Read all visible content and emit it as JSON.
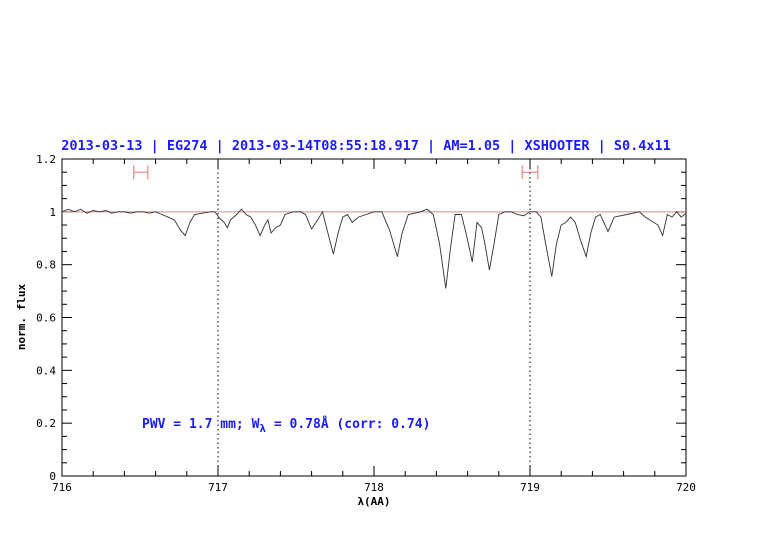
{
  "chart_data": {
    "type": "line",
    "title": "2013-03-13 | EG274 | 2013-03-14T08:55:18.917 | AM=1.05 | XSHOOTER | S0.4x11",
    "xlabel": "λ(AA)",
    "ylabel": "norm. flux",
    "xlim": [
      716,
      720
    ],
    "ylim": [
      0,
      1.2
    ],
    "xticks": [
      716,
      717,
      718,
      719,
      720
    ],
    "yticks": [
      0,
      0.2,
      0.4,
      0.6,
      0.8,
      1,
      1.2
    ],
    "xtick_labels": [
      "716",
      "717",
      "718",
      "719",
      "720"
    ],
    "ytick_labels": [
      "0",
      "0.2",
      "0.4",
      "0.6",
      "0.8",
      "1",
      "1.2"
    ],
    "grid": false,
    "annotation": {
      "prefix": "PWV = 1.7 mm; W",
      "subscript": "λ",
      "suffix": " = 0.78Å (corr: 0.74)"
    },
    "reference_line": {
      "y": 1.0,
      "color": "#d88a8a"
    },
    "vertical_markers": [
      717,
      719
    ],
    "error_bars": [
      {
        "x_min": 716.46,
        "x_max": 716.55,
        "y": 1.15
      },
      {
        "x_min": 718.95,
        "x_max": 719.05,
        "y": 1.15
      }
    ],
    "colors": {
      "title": "#1a1aff",
      "spectrum": "#333333",
      "error_bar": "#f07070",
      "annotation": "#1a1aff"
    },
    "series": [
      {
        "x": [
          716.0,
          716.04,
          716.08,
          716.12,
          716.16,
          716.2,
          716.24,
          716.28,
          716.32,
          716.36,
          716.4,
          716.44,
          716.48,
          716.52,
          716.56,
          716.6,
          716.64,
          716.68,
          716.72,
          716.76,
          716.79,
          716.82,
          716.85,
          716.9,
          716.95,
          716.98,
          717.01,
          717.04,
          717.06,
          717.08,
          717.12,
          717.15,
          717.18,
          717.21,
          717.24,
          717.27,
          717.3,
          717.32,
          717.34,
          717.37,
          717.4,
          717.43,
          717.48,
          717.53,
          717.56,
          717.6,
          717.64,
          717.67,
          717.7,
          717.74,
          717.77,
          717.8,
          717.83,
          717.86,
          717.9,
          717.95,
          718.0,
          718.05,
          718.1,
          718.15,
          718.18,
          718.22,
          718.26,
          718.3,
          718.34,
          718.38,
          718.42,
          718.46,
          718.49,
          718.52,
          718.56,
          718.59,
          718.63,
          718.66,
          718.69,
          718.71,
          718.74,
          718.77,
          718.8,
          718.84,
          718.88,
          718.92,
          718.96,
          719.0,
          719.04,
          719.07,
          719.1,
          719.14,
          719.17,
          719.2,
          719.23,
          719.26,
          719.29,
          719.32,
          719.36,
          719.39,
          719.42,
          719.45,
          719.5,
          719.54,
          719.58,
          719.62,
          719.66,
          719.7,
          719.74,
          719.78,
          719.82,
          719.85,
          719.88,
          719.91,
          719.94,
          719.97,
          720.0
        ],
        "y": [
          1.0,
          1.01,
          1.0,
          1.01,
          0.995,
          1.005,
          1.0,
          1.005,
          0.995,
          1.0,
          1.0,
          0.995,
          1.0,
          1.0,
          0.995,
          1.0,
          0.99,
          0.98,
          0.97,
          0.93,
          0.91,
          0.96,
          0.99,
          0.995,
          1.0,
          1.0,
          0.975,
          0.96,
          0.94,
          0.97,
          0.99,
          1.01,
          0.99,
          0.98,
          0.95,
          0.91,
          0.95,
          0.97,
          0.92,
          0.94,
          0.95,
          0.99,
          1.0,
          1.0,
          0.99,
          0.935,
          0.97,
          1.0,
          0.93,
          0.84,
          0.92,
          0.98,
          0.99,
          0.96,
          0.98,
          0.99,
          1.0,
          1.0,
          0.93,
          0.83,
          0.92,
          0.99,
          0.995,
          1.0,
          1.01,
          0.99,
          0.88,
          0.71,
          0.86,
          0.99,
          0.99,
          0.92,
          0.81,
          0.96,
          0.94,
          0.88,
          0.78,
          0.88,
          0.99,
          1.0,
          1.0,
          0.99,
          0.985,
          1.0,
          1.0,
          0.98,
          0.88,
          0.755,
          0.88,
          0.95,
          0.96,
          0.98,
          0.96,
          0.9,
          0.83,
          0.92,
          0.98,
          0.99,
          0.925,
          0.98,
          0.985,
          0.99,
          0.995,
          1.0,
          0.98,
          0.965,
          0.95,
          0.91,
          0.99,
          0.98,
          1.0,
          0.98,
          0.995
        ]
      }
    ]
  }
}
